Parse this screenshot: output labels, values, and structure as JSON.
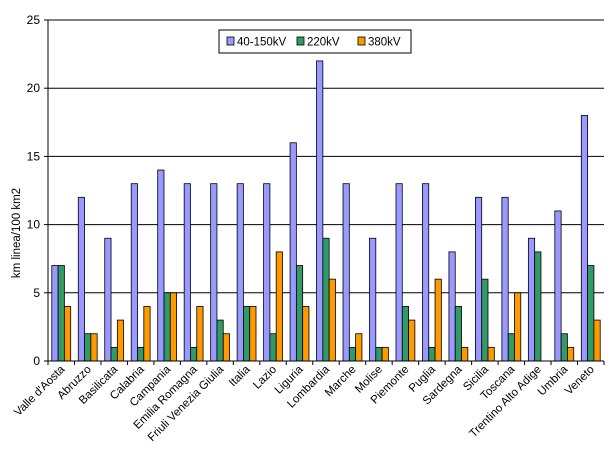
{
  "chart_data": {
    "type": "bar",
    "title": "",
    "xlabel": "",
    "ylabel": "km linea/100 km2",
    "ylim": [
      0,
      25
    ],
    "yticks": [
      0,
      5,
      10,
      15,
      20,
      25
    ],
    "grid": true,
    "legend_position": "top-center",
    "categories": [
      "Valle d'Aosta",
      "Abruzzo",
      "Basilicata",
      "Calabria",
      "Campania",
      "Emilia Romagna",
      "Friuli Venezia Giulia",
      "Italia",
      "Lazio",
      "Liguria",
      "Lombardia",
      "Marche",
      "Molise",
      "Piemonte",
      "Puglia",
      "Sardegna",
      "Sicilia",
      "Toscana",
      "Trentino Alto Adige",
      "Umbria",
      "Veneto"
    ],
    "series": [
      {
        "name": "40-150kV",
        "color": "#9999ff",
        "values": [
          7,
          12,
          9,
          13,
          14,
          13,
          13,
          13,
          13,
          16,
          22,
          13,
          9,
          13,
          13,
          8,
          12,
          12,
          9,
          11,
          18
        ]
      },
      {
        "name": "220kV",
        "color": "#339966",
        "values": [
          7,
          2,
          1,
          1,
          5,
          1,
          3,
          4,
          2,
          7,
          9,
          1,
          1,
          4,
          1,
          4,
          6,
          2,
          8,
          2,
          7
        ]
      },
      {
        "name": "380kV",
        "color": "#ff9900",
        "values": [
          4,
          2,
          3,
          4,
          5,
          4,
          2,
          4,
          8,
          4,
          6,
          2,
          1,
          3,
          6,
          1,
          1,
          5,
          0,
          1,
          3
        ]
      }
    ]
  }
}
